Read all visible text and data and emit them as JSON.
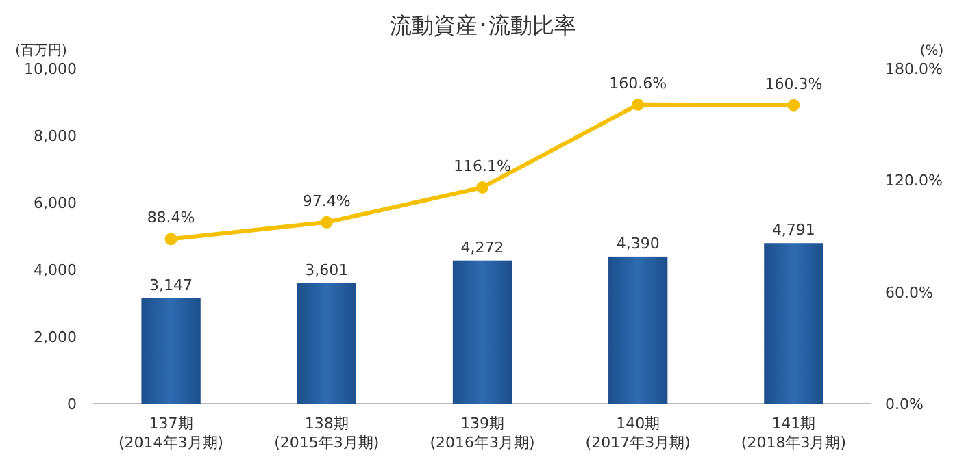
{
  "chart_data": {
    "type": "bar",
    "title": "流動資産･流動比率",
    "ylabel": "(百万円)",
    "y2label": "(%)",
    "categories": [
      "137期\n(2014年3月期)",
      "138期\n(2015年3月期)",
      "139期\n(2016年3月期)",
      "140期\n(2017年3月期)",
      "141期\n(2018年3月期)"
    ],
    "series": [
      {
        "color": "#2e6bb0",
        "values": [
          3147,
          3601,
          4272,
          4390,
          4791
        ],
        "value_labels": [
          "3,147",
          "3,601",
          "4,272",
          "4,390",
          "4,791"
        ]
      },
      {
        "type": "line",
        "axis": "y2",
        "color": "#f5c000",
        "marker": "circle",
        "values": [
          88.4,
          97.4,
          116.1,
          160.6,
          160.3
        ],
        "value_labels": [
          "88.4%",
          "97.4%",
          "116.1%",
          "160.6%",
          "160.3%"
        ]
      }
    ],
    "ylim": [
      0,
      10000
    ],
    "yticks": [
      {
        "value": 0,
        "label": "0"
      },
      {
        "value": 2000,
        "label": "2,000"
      },
      {
        "value": 4000,
        "label": "4,000"
      },
      {
        "value": 6000,
        "label": "6,000"
      },
      {
        "value": 8000,
        "label": "8,000"
      },
      {
        "value": 10000,
        "label": "10,000"
      }
    ],
    "y2lim": [
      0,
      180
    ],
    "y2ticks": [
      {
        "value": 0,
        "label": "0.0%"
      },
      {
        "value": 60,
        "label": "60.0%"
      },
      {
        "value": 120,
        "label": "120.0%"
      },
      {
        "value": 180,
        "label": "180.0%"
      }
    ],
    "grid": false
  }
}
